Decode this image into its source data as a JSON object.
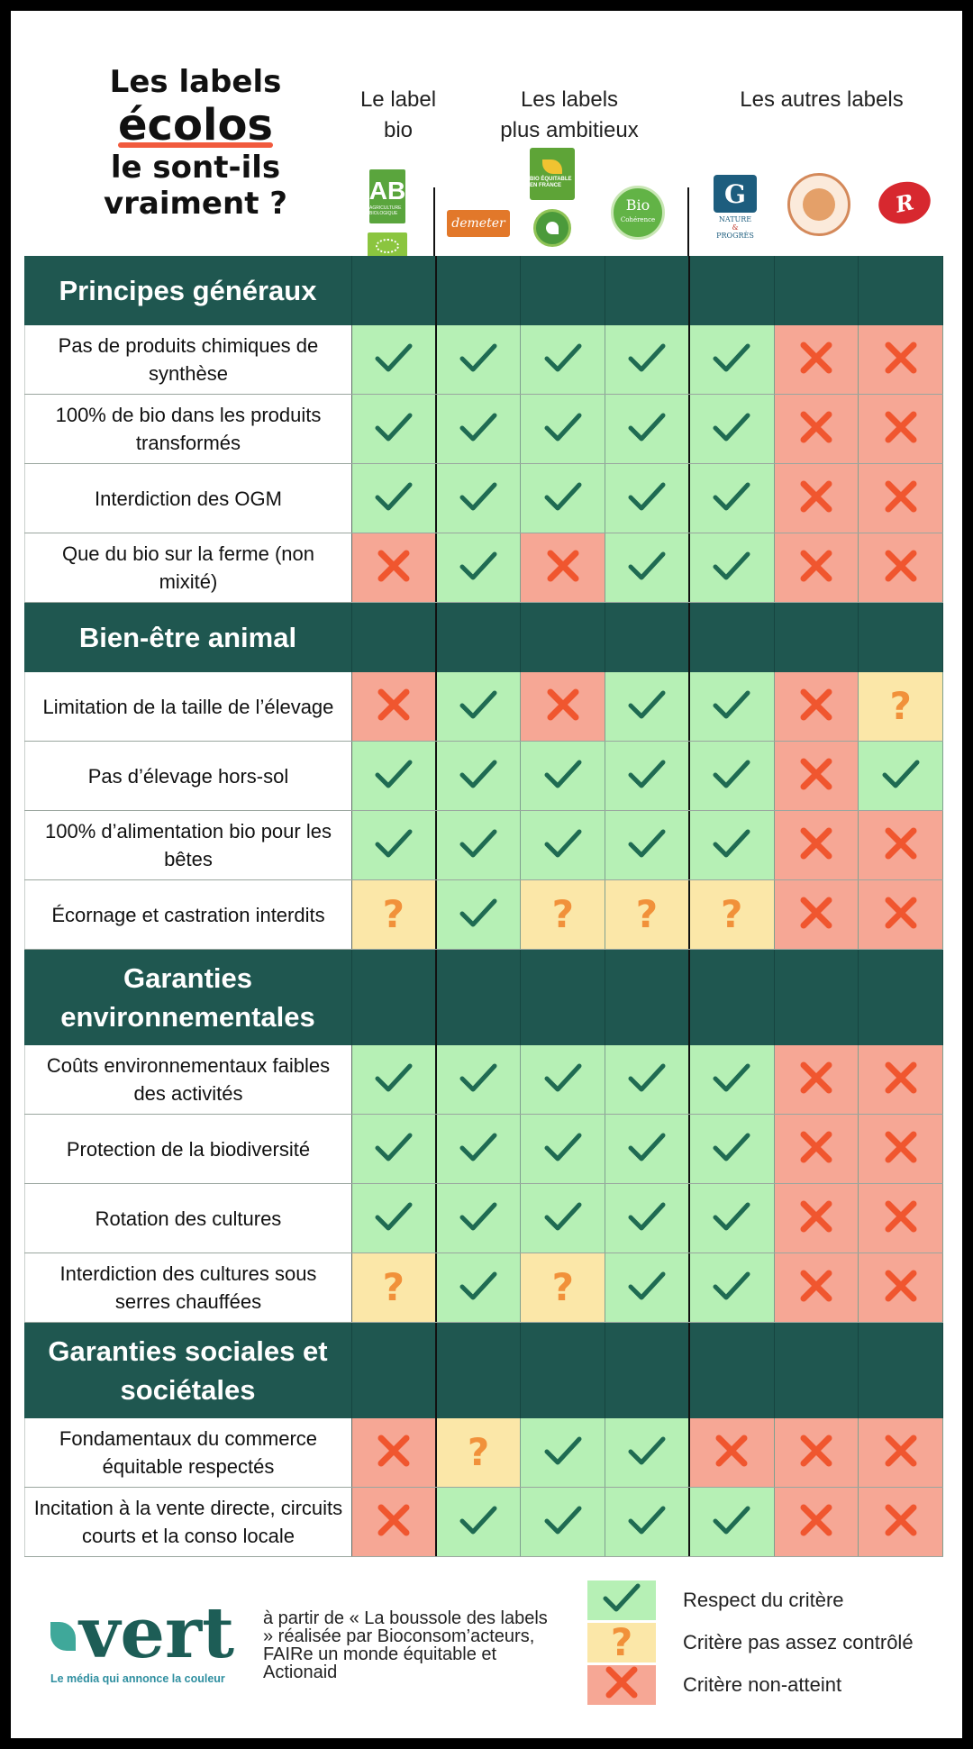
{
  "title": {
    "line1": "Les labels",
    "line2": "écolos",
    "line3": "le sont-ils",
    "line4": "vraiment ?"
  },
  "groups": {
    "bio": {
      "line1": "Le label",
      "line2": "bio"
    },
    "ambitious": {
      "line1": "Les labels",
      "line2": "plus ambitieux"
    },
    "others": {
      "line1": "Les autres labels"
    }
  },
  "logos": {
    "ab": "AB",
    "ab_small": "AGRICULTURE BIOLOGIQUE",
    "demeter": "demeter",
    "bef": "BIO ÉQUITABLE EN FRANCE",
    "bio_coherence_1": "Bio",
    "bio_coherence_2": "Cohérence",
    "np_1": "NATURE",
    "np_2": "&",
    "np_3": "PROGRÈS",
    "label_rouge": "Label Rouge"
  },
  "colors": {
    "dark_green": "#1f5750",
    "ok": "#b6f0b5",
    "question": "#fbe7a8",
    "fail": "#f6a795",
    "accent": "#f15a3d"
  },
  "sections": [
    {
      "title": "Principes généraux",
      "rows": [
        {
          "label": "Pas de produits chimiques de synthèse",
          "values": [
            "ok",
            "ok",
            "ok",
            "ok",
            "ok",
            "no",
            "no"
          ]
        },
        {
          "label": "100% de bio dans les produits transformés",
          "values": [
            "ok",
            "ok",
            "ok",
            "ok",
            "ok",
            "no",
            "no"
          ]
        },
        {
          "label": "Interdiction des OGM",
          "values": [
            "ok",
            "ok",
            "ok",
            "ok",
            "ok",
            "no",
            "no"
          ]
        },
        {
          "label": "Que du bio sur la ferme (non mixité)",
          "values": [
            "no",
            "ok",
            "no",
            "ok",
            "ok",
            "no",
            "no"
          ]
        }
      ]
    },
    {
      "title": "Bien-être animal",
      "rows": [
        {
          "label": "Limitation de la taille de l’élevage",
          "values": [
            "no",
            "ok",
            "no",
            "ok",
            "ok",
            "no",
            "q"
          ]
        },
        {
          "label": "Pas d’élevage hors-sol",
          "values": [
            "ok",
            "ok",
            "ok",
            "ok",
            "ok",
            "no",
            "ok"
          ]
        },
        {
          "label": "100% d’alimentation bio pour les bêtes",
          "values": [
            "ok",
            "ok",
            "ok",
            "ok",
            "ok",
            "no",
            "no"
          ]
        },
        {
          "label": "Écornage et castration interdits",
          "values": [
            "q",
            "ok",
            "q",
            "q",
            "q",
            "no",
            "no"
          ]
        }
      ]
    },
    {
      "title": "Garanties environnementales",
      "rows": [
        {
          "label": "Coûts environnementaux faibles des activités",
          "values": [
            "ok",
            "ok",
            "ok",
            "ok",
            "ok",
            "no",
            "no"
          ]
        },
        {
          "label": "Protection de la biodiversité",
          "values": [
            "ok",
            "ok",
            "ok",
            "ok",
            "ok",
            "no",
            "no"
          ]
        },
        {
          "label": "Rotation des cultures",
          "values": [
            "ok",
            "ok",
            "ok",
            "ok",
            "ok",
            "no",
            "no"
          ]
        },
        {
          "label": "Interdiction des cultures sous serres chauffées",
          "values": [
            "q",
            "ok",
            "q",
            "ok",
            "ok",
            "no",
            "no"
          ]
        }
      ]
    },
    {
      "title": "Garanties sociales et sociétales",
      "rows": [
        {
          "label": "Fondamentaux du commerce équitable respectés",
          "values": [
            "no",
            "q",
            "ok",
            "ok",
            "no",
            "no",
            "no"
          ]
        },
        {
          "label": "Incitation à la vente directe, circuits courts et la conso locale",
          "values": [
            "no",
            "ok",
            "ok",
            "ok",
            "ok",
            "no",
            "no"
          ]
        }
      ]
    }
  ],
  "footer": {
    "brand": "vert",
    "tagline": "Le média qui annonce la couleur",
    "credit": "à partir  de « La boussole des labels » réalisée par Bioconsom’acteurs, FAIRe un monde équitable et Actionaid"
  },
  "legend": [
    {
      "type": "ok",
      "label": "Respect du critère"
    },
    {
      "type": "q",
      "label": "Critère pas assez contrôlé"
    },
    {
      "type": "no",
      "label": "Critère non-atteint"
    }
  ]
}
